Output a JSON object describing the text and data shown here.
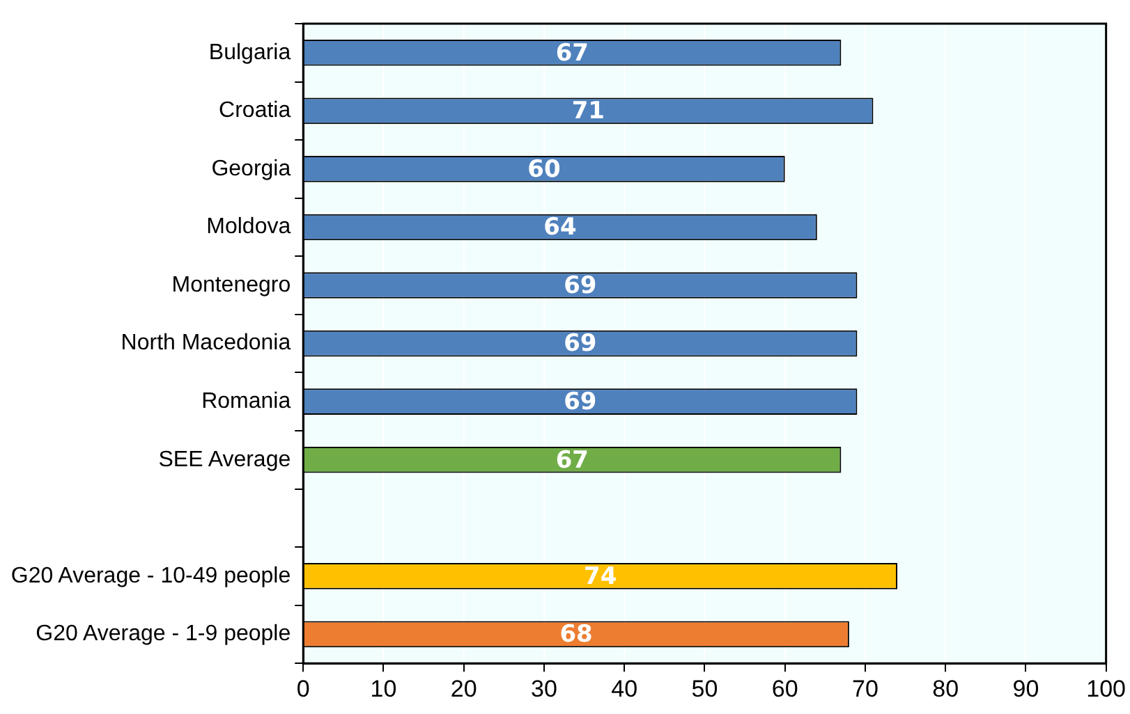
{
  "chart_data": {
    "type": "bar",
    "orientation": "horizontal",
    "categories": [
      "Bulgaria",
      "Croatia",
      "Georgia",
      "Moldova",
      "Montenegro",
      "North Macedonia",
      "Romania",
      "SEE Average",
      null,
      "G20 Average - 10-49 people",
      "G20 Average - 1-9 people"
    ],
    "values": [
      67,
      71,
      60,
      64,
      69,
      69,
      69,
      67,
      null,
      74,
      68
    ],
    "colors": [
      "#4f81bd",
      "#4f81bd",
      "#4f81bd",
      "#4f81bd",
      "#4f81bd",
      "#4f81bd",
      "#4f81bd",
      "#70ad47",
      "#4f81bd",
      "#ffc000",
      "#ed7d31"
    ],
    "xlim": [
      0,
      100
    ],
    "xticks": [
      0,
      10,
      20,
      30,
      40,
      50,
      60,
      70,
      80,
      90,
      100
    ],
    "data_labels": true,
    "grid": "x",
    "legend": false
  }
}
